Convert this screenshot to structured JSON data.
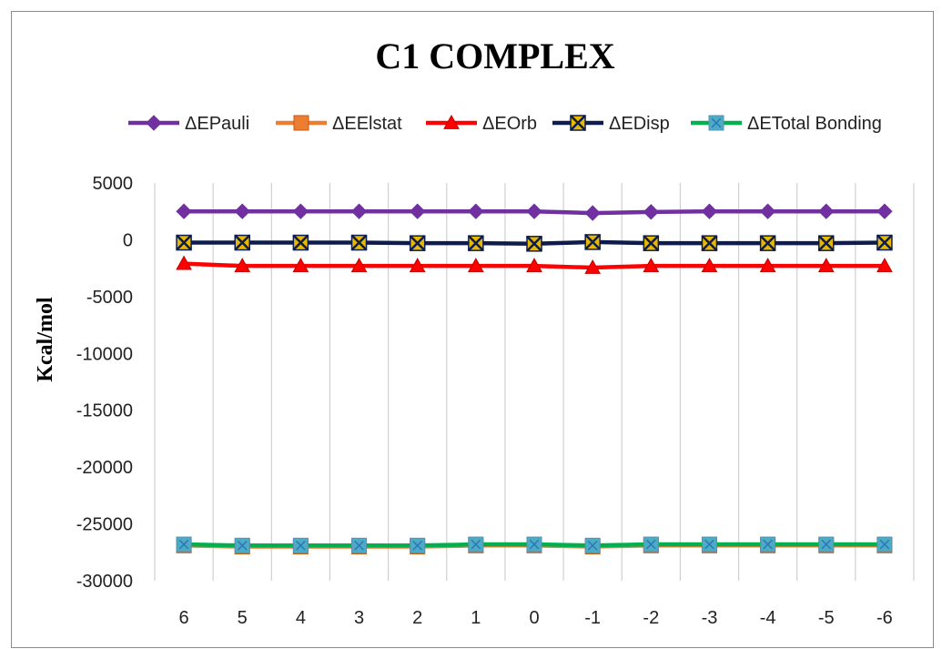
{
  "chart_data": {
    "type": "line",
    "title": "C1 COMPLEX",
    "xlabel": "",
    "ylabel": "Kcal/mol",
    "categories": [
      "6",
      "5",
      "4",
      "3",
      "2",
      "1",
      "0",
      "-1",
      "-2",
      "-3",
      "-4",
      "-5",
      "-6"
    ],
    "ylim": [
      -30000,
      5000
    ],
    "yticks": [
      5000,
      0,
      -5000,
      -10000,
      -15000,
      -20000,
      -25000,
      -30000
    ],
    "grid": "vertical",
    "legend_position": "top",
    "series": [
      {
        "name": "ΔEPauli",
        "color": "#7030a0",
        "marker": "diamond",
        "values": [
          2500,
          2500,
          2500,
          2500,
          2500,
          2500,
          2500,
          2350,
          2450,
          2500,
          2500,
          2500,
          2500
        ]
      },
      {
        "name": "ΔEElstat",
        "color": "#ed7d31",
        "marker": "square",
        "values": [
          -26900,
          -27000,
          -27000,
          -27000,
          -27000,
          -26900,
          -26900,
          -27000,
          -26900,
          -26900,
          -26900,
          -26900,
          -26900
        ]
      },
      {
        "name": "ΔEOrb",
        "color": "#ff0000",
        "marker": "triangle",
        "values": [
          -2100,
          -2300,
          -2300,
          -2300,
          -2300,
          -2300,
          -2300,
          -2450,
          -2300,
          -2300,
          -2300,
          -2300,
          -2300
        ]
      },
      {
        "name": "ΔEDisp",
        "color": "#0d1b4d",
        "marker": "x-box",
        "values": [
          -250,
          -250,
          -250,
          -250,
          -300,
          -300,
          -350,
          -200,
          -300,
          -300,
          -300,
          -300,
          -250
        ]
      },
      {
        "name": "ΔETotal Bonding",
        "color": "#00b050",
        "marker": "square-x",
        "values": [
          -26800,
          -26900,
          -26900,
          -26900,
          -26900,
          -26800,
          -26800,
          -26900,
          -26800,
          -26800,
          -26800,
          -26800,
          -26800
        ]
      }
    ]
  }
}
